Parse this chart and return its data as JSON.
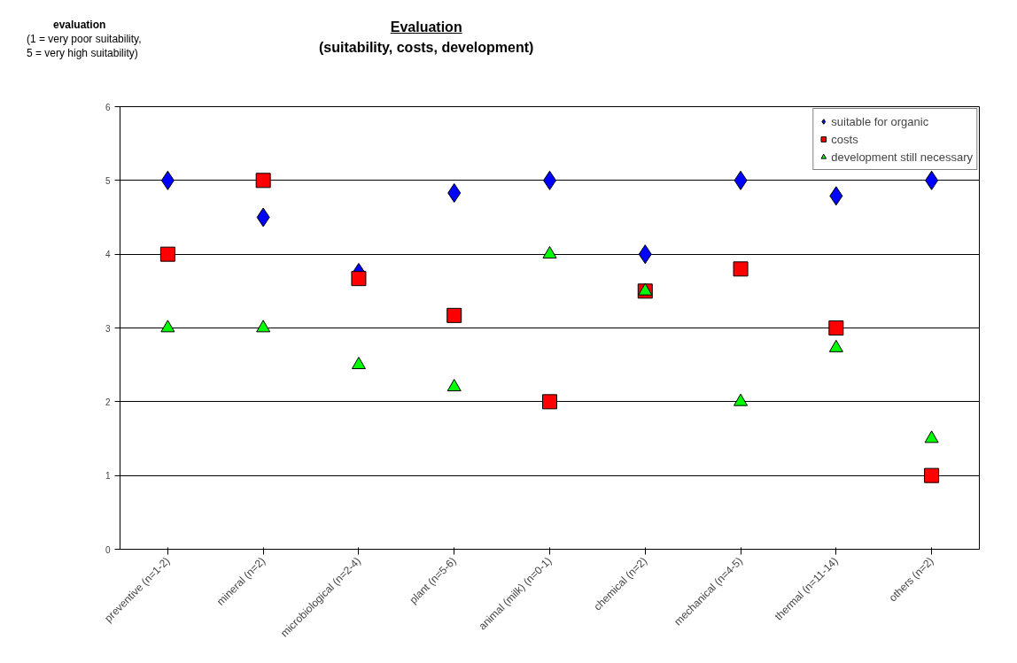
{
  "chart_data": {
    "type": "scatter",
    "title": "Evaluation",
    "subtitle": "(suitability, costs, development)",
    "ylabel": "evaluation\n(1 = very poor suitability,\n5 = very high suitability)",
    "categories": [
      "preventive (n=1-2)",
      "mineral (n=2)",
      "microbiological (n=2-4)",
      "plant (n=5-6)",
      "animal (milk) (n=0-1)",
      "chemical (n=2)",
      "mechanical (n=4-5)",
      "thermal (n=11-14)",
      "others (n=2)"
    ],
    "series": [
      {
        "name": "suitable for organic",
        "color": "#0000ff",
        "marker": "diamond",
        "values": [
          5,
          4.5,
          3.75,
          4.83,
          5,
          4,
          5,
          4.79,
          5
        ]
      },
      {
        "name": "costs",
        "color": "#ff0000",
        "marker": "square",
        "values": [
          4,
          5,
          3.67,
          3.17,
          2,
          3.5,
          3.8,
          3,
          1
        ]
      },
      {
        "name": "development still necessary",
        "color": "#00ff00",
        "marker": "triangle",
        "values": [
          3,
          3,
          2.5,
          2.2,
          4,
          3.5,
          2,
          2.73,
          1.5
        ]
      }
    ],
    "ylim": [
      0,
      6
    ],
    "yticks": [
      0,
      1,
      2,
      3,
      4,
      5,
      6
    ],
    "grid": "y",
    "legend": "top right"
  }
}
